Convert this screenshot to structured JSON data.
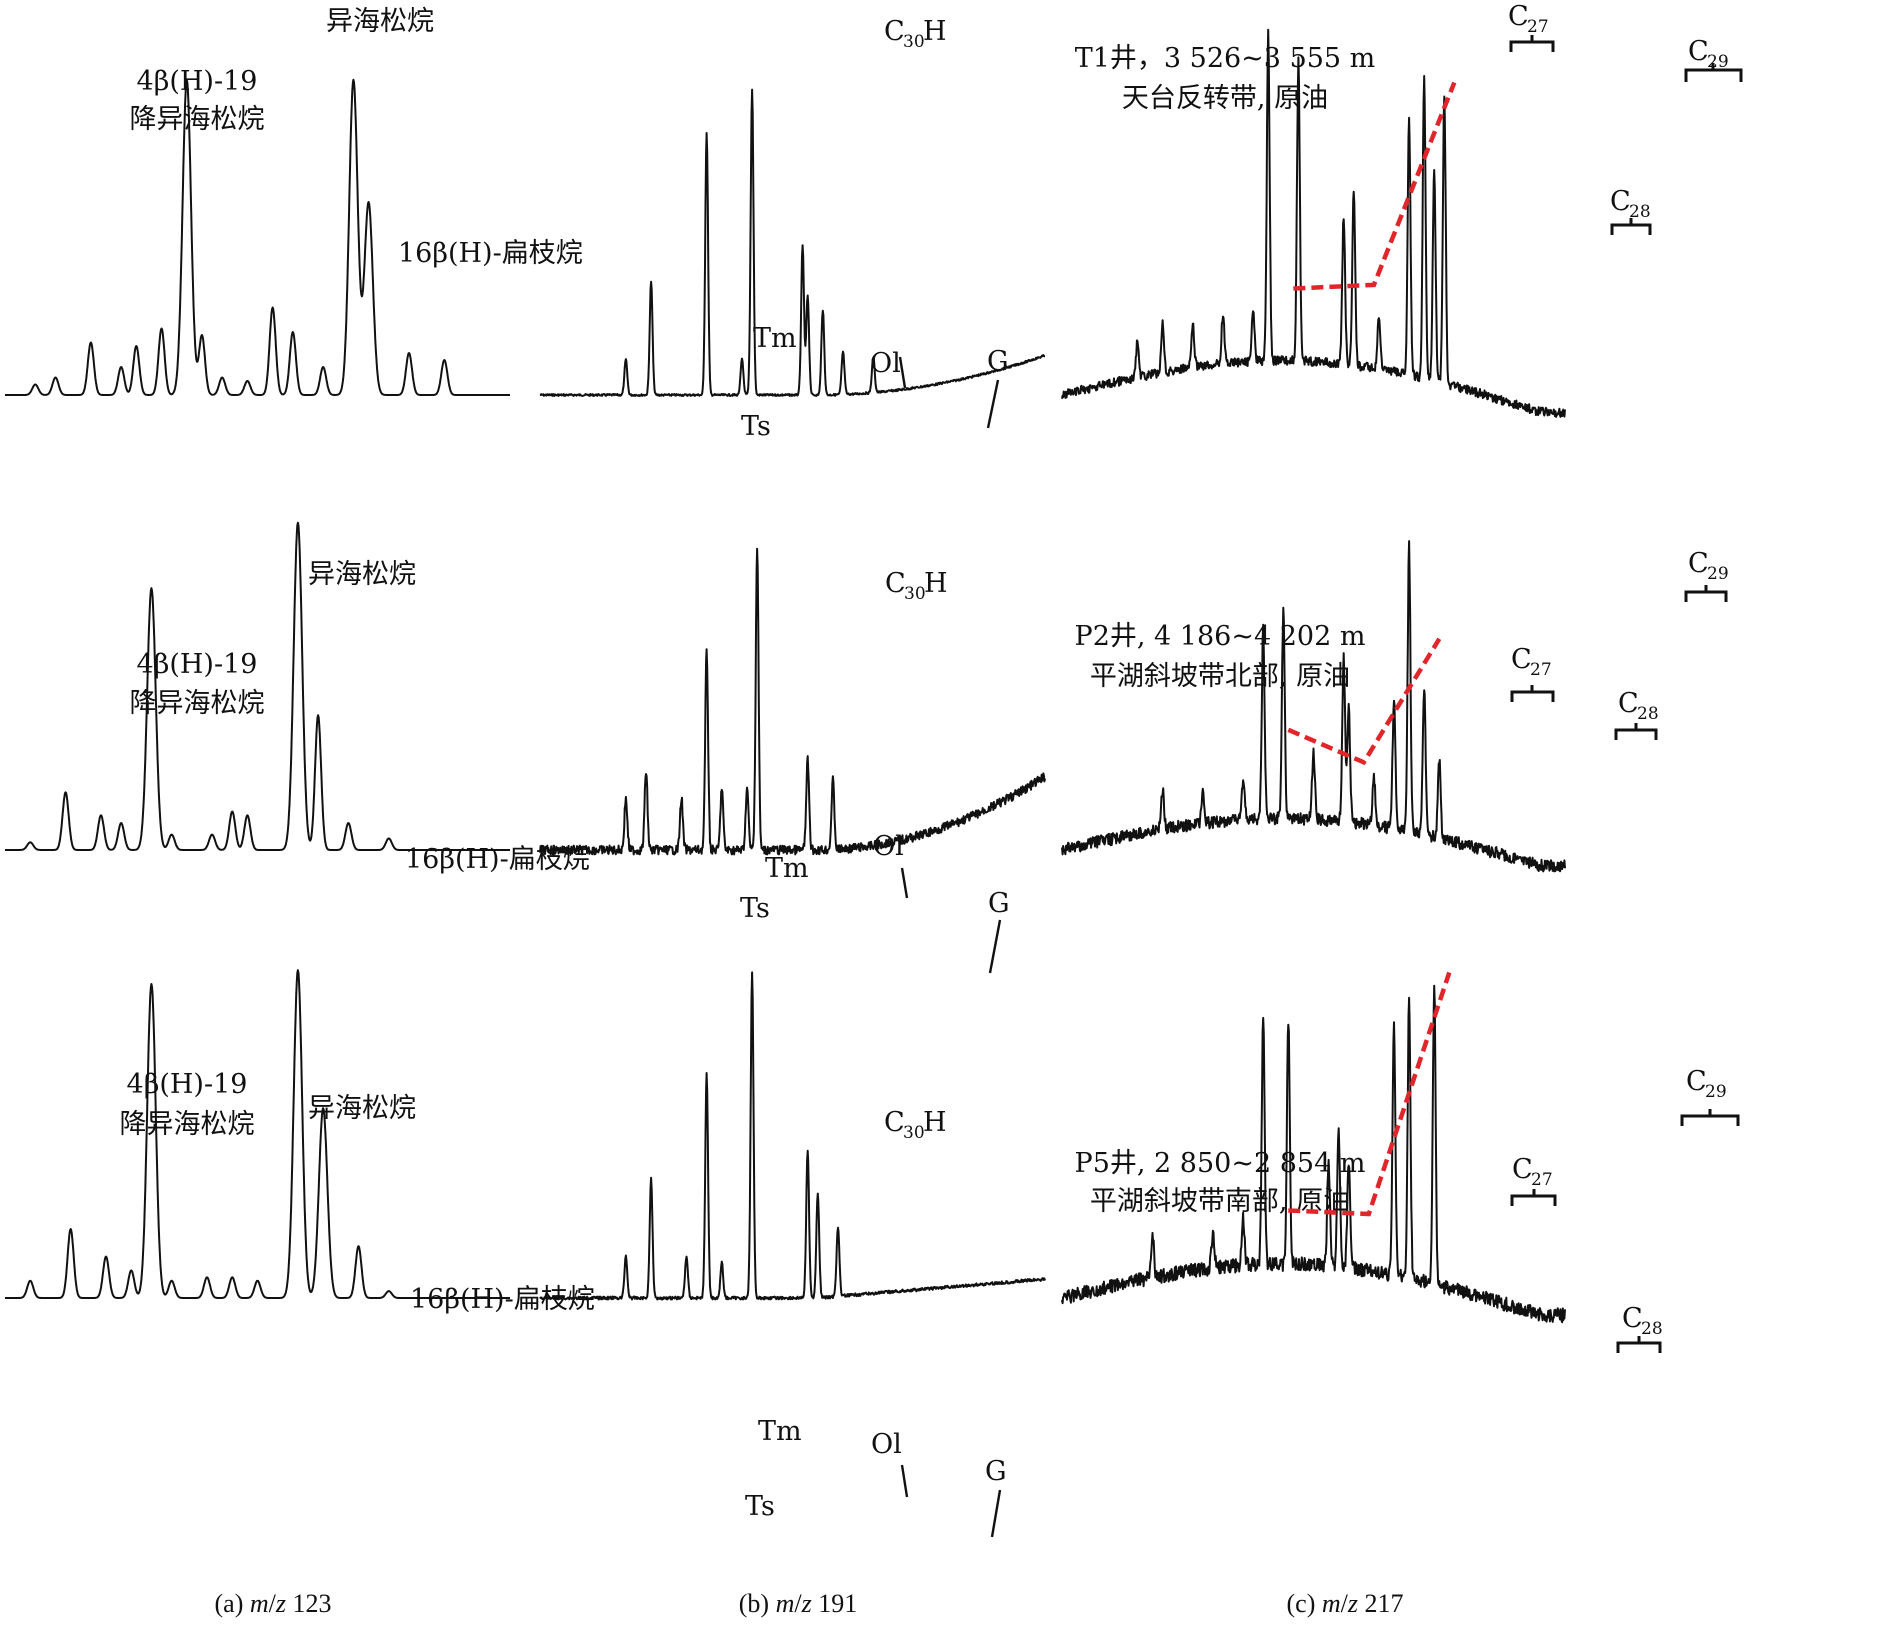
{
  "figure_captions": {
    "a": {
      "label": "(a) ",
      "mz": "m",
      "slash": "/",
      "z": "z",
      "num": " 123"
    },
    "b": {
      "label": "(b) ",
      "mz": "m",
      "slash": "/",
      "z": "z",
      "num": " 191"
    },
    "c": {
      "label": "(c) ",
      "mz": "m",
      "slash": "/",
      "z": "z",
      "num": " 217"
    }
  },
  "line_color": "#111111",
  "trend_color": "#e0262b",
  "chart_data": [
    {
      "type": "line",
      "panel": "a",
      "row": 1,
      "mz": "123",
      "peak_labels": {
        "isopimarane": "异海松烷",
        "norisopimarane": [
          "4β(H)-19",
          "降异海松烷"
        ],
        "phyllocladane": "16β(H)-扁枝烷"
      },
      "peaks": [
        [
          0.06,
          0.03
        ],
        [
          0.1,
          0.05
        ],
        [
          0.17,
          0.15
        ],
        [
          0.23,
          0.08
        ],
        [
          0.26,
          0.14
        ],
        [
          0.31,
          0.19
        ],
        [
          0.36,
          0.9
        ],
        [
          0.39,
          0.17
        ],
        [
          0.43,
          0.05
        ],
        [
          0.48,
          0.04
        ],
        [
          0.53,
          0.25
        ],
        [
          0.57,
          0.18
        ],
        [
          0.63,
          0.08
        ],
        [
          0.69,
          0.9
        ],
        [
          0.72,
          0.55
        ],
        [
          0.8,
          0.12
        ],
        [
          0.87,
          0.1
        ]
      ],
      "description_visible_text": "T1井, 3 526~3 555 m 天台反转带, 原油"
    },
    {
      "type": "line",
      "panel": "a",
      "row": 2,
      "mz": "123",
      "peak_labels": {
        "isopimarane": "异海松烷",
        "norisopimarane": [
          "4β(H)-19",
          "降异海松烷"
        ],
        "phyllocladane": "16β(H)-扁枝烷"
      },
      "peaks": [
        [
          0.05,
          0.02
        ],
        [
          0.12,
          0.15
        ],
        [
          0.19,
          0.09
        ],
        [
          0.23,
          0.07
        ],
        [
          0.29,
          0.68
        ],
        [
          0.33,
          0.04
        ],
        [
          0.41,
          0.04
        ],
        [
          0.45,
          0.1
        ],
        [
          0.48,
          0.09
        ],
        [
          0.58,
          0.85
        ],
        [
          0.62,
          0.35
        ],
        [
          0.68,
          0.07
        ],
        [
          0.76,
          0.03
        ]
      ],
      "description_visible_text": "P2井, 4 186~4 202 m 平湖斜坡带北部, 原油"
    },
    {
      "type": "line",
      "panel": "a",
      "row": 3,
      "mz": "123",
      "peak_labels": {
        "isopimarane": "异海松烷",
        "norisopimarane": [
          "4β(H)-19",
          "降异海松烷"
        ],
        "phyllocladane": "16β(H)-扁枝烷"
      },
      "peaks": [
        [
          0.05,
          0.05
        ],
        [
          0.13,
          0.2
        ],
        [
          0.2,
          0.12
        ],
        [
          0.25,
          0.08
        ],
        [
          0.29,
          0.91
        ],
        [
          0.33,
          0.05
        ],
        [
          0.4,
          0.06
        ],
        [
          0.45,
          0.06
        ],
        [
          0.5,
          0.05
        ],
        [
          0.58,
          0.95
        ],
        [
          0.63,
          0.55
        ],
        [
          0.7,
          0.15
        ],
        [
          0.76,
          0.02
        ]
      ],
      "description_visible_text": "P5井, 2 850~2 854 m 平湖斜坡带南部, 原油"
    },
    {
      "type": "line",
      "panel": "b",
      "row": 1,
      "mz": "191",
      "peak_labels": {
        "hopane": "C",
        "hopane_sub": "30",
        "hopane_suffix": "H",
        "ts": "Ts",
        "tm": "Tm",
        "ol": "Ol",
        "g": "G"
      },
      "peaks": [
        [
          0.17,
          0.1
        ],
        [
          0.22,
          0.32
        ],
        [
          0.33,
          0.74
        ],
        [
          0.4,
          0.1
        ],
        [
          0.42,
          0.86
        ],
        [
          0.52,
          0.42
        ],
        [
          0.53,
          0.28
        ],
        [
          0.56,
          0.24
        ],
        [
          0.6,
          0.12
        ],
        [
          0.66,
          0.1
        ]
      ],
      "well_label": [
        "T1井，3 526~3 555 m",
        "天台反转带, 原油"
      ]
    },
    {
      "type": "line",
      "panel": "b",
      "row": 2,
      "mz": "191",
      "peak_labels": {
        "hopane": "C",
        "hopane_sub": "30",
        "hopane_suffix": "H",
        "ts": "Ts",
        "tm": "Tm",
        "ol": "Ol",
        "g": "G"
      },
      "peaks": [
        [
          0.17,
          0.15
        ],
        [
          0.21,
          0.23
        ],
        [
          0.28,
          0.15
        ],
        [
          0.33,
          0.58
        ],
        [
          0.36,
          0.18
        ],
        [
          0.41,
          0.18
        ],
        [
          0.43,
          0.88
        ],
        [
          0.53,
          0.26
        ],
        [
          0.58,
          0.2
        ]
      ],
      "well_label": [
        "P2井, 4 186~4 202 m",
        "平湖斜坡带北部, 原油"
      ]
    },
    {
      "type": "line",
      "panel": "b",
      "row": 3,
      "mz": "191",
      "peak_labels": {
        "hopane": "C",
        "hopane_sub": "30",
        "hopane_suffix": "H",
        "ts": "Ts",
        "tm": "Tm",
        "ol": "Ol",
        "g": "G"
      },
      "peaks": [
        [
          0.17,
          0.12
        ],
        [
          0.22,
          0.34
        ],
        [
          0.29,
          0.12
        ],
        [
          0.33,
          0.64
        ],
        [
          0.36,
          0.1
        ],
        [
          0.42,
          0.93
        ],
        [
          0.53,
          0.42
        ],
        [
          0.55,
          0.3
        ],
        [
          0.59,
          0.2
        ]
      ],
      "well_label": [
        "P5井, 2 850~2 854 m",
        "平湖斜坡带南部, 原油"
      ]
    },
    {
      "type": "line",
      "panel": "c",
      "row": 1,
      "mz": "217",
      "steranes": {
        "c27": "C",
        "c27_sub": "27",
        "c28": "C",
        "c28_sub": "28",
        "c29": "C",
        "c29_sub": "29"
      },
      "peaks": [
        [
          0.15,
          0.1
        ],
        [
          0.2,
          0.14
        ],
        [
          0.26,
          0.12
        ],
        [
          0.32,
          0.14
        ],
        [
          0.38,
          0.14
        ],
        [
          0.41,
          0.92
        ],
        [
          0.47,
          0.85
        ],
        [
          0.56,
          0.42
        ],
        [
          0.58,
          0.5
        ],
        [
          0.63,
          0.15
        ],
        [
          0.69,
          0.72
        ],
        [
          0.72,
          0.85
        ],
        [
          0.74,
          0.6
        ],
        [
          0.76,
          0.82
        ]
      ],
      "trend": {
        "from": [
          0.46,
          0.3
        ],
        "mid": [
          0.62,
          0.31
        ],
        "to": [
          0.78,
          0.88
        ]
      }
    },
    {
      "type": "line",
      "panel": "c",
      "row": 2,
      "mz": "217",
      "steranes": {
        "c27": "C",
        "c27_sub": "27",
        "c28": "C",
        "c28_sub": "28",
        "c29": "C",
        "c29_sub": "29"
      },
      "peaks": [
        [
          0.2,
          0.12
        ],
        [
          0.28,
          0.1
        ],
        [
          0.36,
          0.12
        ],
        [
          0.4,
          0.58
        ],
        [
          0.44,
          0.64
        ],
        [
          0.5,
          0.2
        ],
        [
          0.56,
          0.5
        ],
        [
          0.57,
          0.35
        ],
        [
          0.62,
          0.15
        ],
        [
          0.66,
          0.4
        ],
        [
          0.69,
          0.88
        ],
        [
          0.72,
          0.45
        ],
        [
          0.75,
          0.25
        ]
      ],
      "trend": {
        "from": [
          0.45,
          0.37
        ],
        "mid": [
          0.6,
          0.27
        ],
        "to": [
          0.75,
          0.65
        ]
      }
    },
    {
      "type": "line",
      "panel": "c",
      "row": 3,
      "mz": "217",
      "steranes": {
        "c27": "C",
        "c27_sub": "27",
        "c28": "C",
        "c28_sub": "28",
        "c29": "C",
        "c29_sub": "29"
      },
      "peaks": [
        [
          0.18,
          0.12
        ],
        [
          0.3,
          0.1
        ],
        [
          0.36,
          0.14
        ],
        [
          0.4,
          0.7
        ],
        [
          0.45,
          0.7
        ],
        [
          0.53,
          0.3
        ],
        [
          0.55,
          0.38
        ],
        [
          0.57,
          0.3
        ],
        [
          0.66,
          0.72
        ],
        [
          0.69,
          0.8
        ],
        [
          0.74,
          0.85
        ]
      ],
      "trend": {
        "from": [
          0.45,
          0.25
        ],
        "mid": [
          0.61,
          0.24
        ],
        "to": [
          0.77,
          0.93
        ]
      }
    }
  ]
}
